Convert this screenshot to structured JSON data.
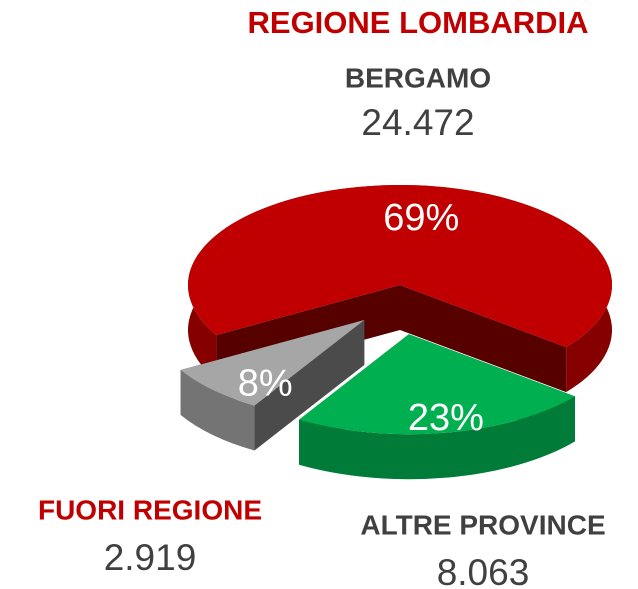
{
  "chart_data": {
    "type": "pie",
    "title": "REGIONE LOMBARDIA",
    "categories": [
      "BERGAMO",
      "ALTRE PROVINCE",
      "FUORI REGIONE"
    ],
    "values": [
      69,
      23,
      8
    ],
    "value_labels": [
      "69%",
      "23%",
      "8%"
    ],
    "counts": [
      24472,
      8063,
      2919
    ],
    "count_labels": [
      "24.472",
      "8.063",
      "2.919"
    ],
    "colors": [
      "#c00000",
      "#00b050",
      "#a6a6a6"
    ],
    "label_colors": [
      "#404040",
      "#404040",
      "#c00000"
    ],
    "title_color": "#c00000"
  }
}
